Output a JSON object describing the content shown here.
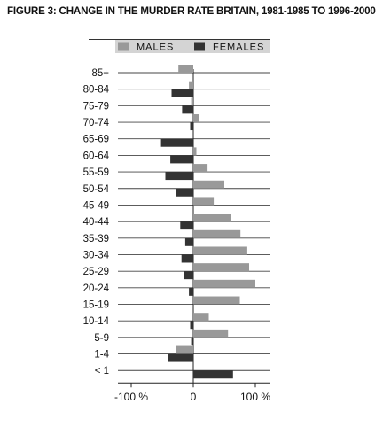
{
  "title": "FIGURE 3: CHANGE IN THE MURDER RATE BRITAIN, 1981-1985 TO 1996-2000",
  "chart_data": {
    "type": "bar",
    "orientation": "horizontal",
    "categories": [
      "85+",
      "80-84",
      "75-79",
      "70-74",
      "65-69",
      "60-64",
      "55-59",
      "50-54",
      "45-49",
      "40-44",
      "35-39",
      "30-34",
      "25-29",
      "20-24",
      "15-19",
      "10-14",
      "5-9",
      "1-4",
      "< 1"
    ],
    "series": [
      {
        "name": "MALES",
        "color": "#999999",
        "values": [
          -24,
          -7,
          -2,
          10,
          0,
          5,
          23,
          50,
          33,
          60,
          76,
          87,
          90,
          100,
          75,
          25,
          56,
          -28,
          0
        ]
      },
      {
        "name": "FEMALES",
        "color": "#333333",
        "values": [
          0,
          -35,
          -18,
          -5,
          -52,
          -37,
          -45,
          -28,
          0,
          -21,
          -13,
          -19,
          -15,
          -7,
          0,
          -5,
          -2,
          -40,
          64
        ]
      }
    ],
    "xlim": [
      -100,
      120
    ],
    "xticks": [
      -100,
      0,
      100
    ],
    "xtick_labels": [
      "-100 %",
      "0",
      "100 %"
    ],
    "legend_position": "top",
    "grid": "horizontal"
  }
}
